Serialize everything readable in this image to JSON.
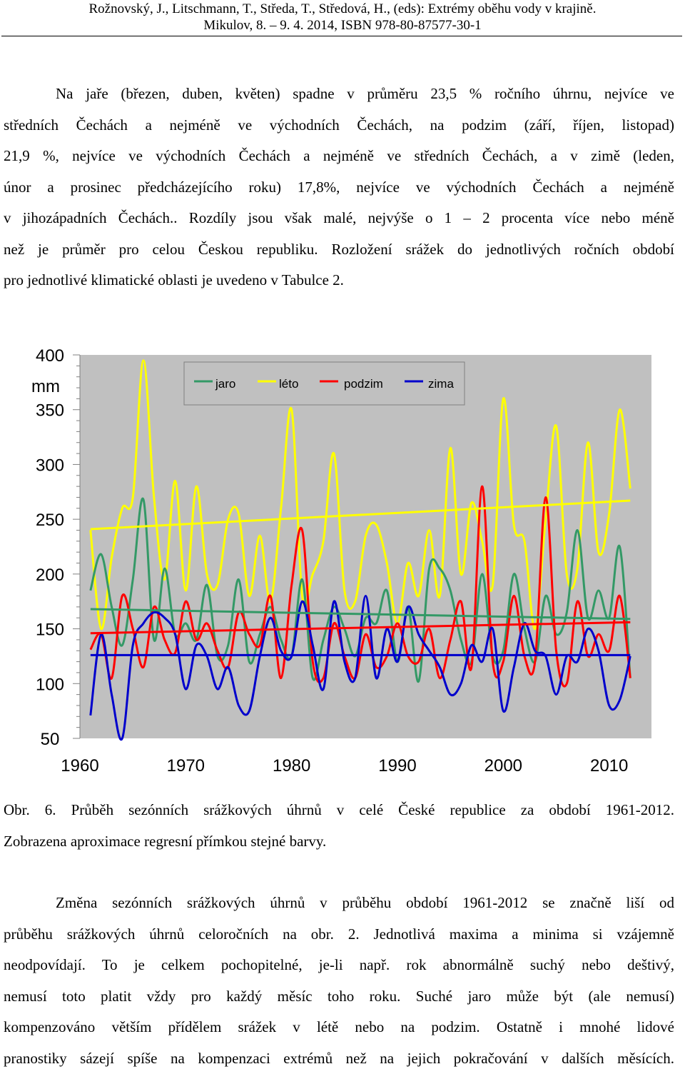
{
  "header": {
    "line1": "Rožnovský, J., Litschmann, T., Středa, T., Středová, H.,  (eds): Extrémy oběhu vody v krajině.",
    "line2": "Mikulov, 8. – 9. 4. 2014, ISBN 978-80-87577-30-1"
  },
  "para1": [
    "Na jaře (březen, duben, květen) spadne v průměru 23,5 % ročního úhrnu, nejvíce ve",
    "středních Čechách a nejméně ve východních Čechách, na podzim (září, říjen, listopad)",
    "21,9 %, nejvíce ve východních Čechách a nejméně ve středních Čechách, a v zimě (leden,",
    "únor a prosinec předcházejícího roku) 17,8%, nejvíce ve východních Čechách a nejméně",
    "v jihozápadních Čechách.. Rozdíly jsou však malé, nejvýše o 1 – 2 procenta více nebo méně",
    "než je průměr pro celou Českou republiku. Rozložení srážek do jednotlivých ročních období",
    "pro jednotlivé klimatické oblasti je uvedeno v Tabulce 2."
  ],
  "caption": [
    "Obr. 6. Průběh sezónních srážkových úhrnů v celé České republice za období 1961-2012.",
    "Zobrazena aproximace regresní přímkou stejné barvy."
  ],
  "para2": [
    "Změna sezónních srážkových úhrnů v průběhu období 1961-2012 se značně liší od",
    "průběhu srážkových úhrnů celoročních na obr. 2. Jednotlivá maxima a minima si vzájemně",
    "neodpovídají. To je celkem pochopitelné, je-li např. rok abnormálně suchý nebo deštivý,",
    "nemusí toto platit vždy pro každý měsíc toho roku. Suché jaro může být (ale nemusí)",
    "kompenzováno větším přídělem srážek v létě nebo na podzim. Ostatně i mnohé lidové",
    "pranostiky sázejí spíše na kompenzaci extrémů než na jejich pokračování v dalších měsících."
  ],
  "chart_data": {
    "type": "line",
    "ylabel": "mm",
    "ylim": [
      50,
      400
    ],
    "xlim": [
      1960,
      2014
    ],
    "y_ticks": [
      "50",
      "100",
      "150",
      "200",
      "250",
      "300",
      "350",
      "400"
    ],
    "x_ticks": [
      "1960",
      "1970",
      "1980",
      "1990",
      "2000",
      "2010"
    ],
    "x_tick_values": [
      1960,
      1970,
      1980,
      1990,
      2000,
      2010
    ],
    "y_tick_values": [
      50,
      100,
      150,
      200,
      250,
      300,
      350,
      400
    ],
    "grid": false,
    "legend_position": "top",
    "background": "#c0c0c0",
    "years": [
      1961,
      1962,
      1963,
      1964,
      1965,
      1966,
      1967,
      1968,
      1969,
      1970,
      1971,
      1972,
      1973,
      1974,
      1975,
      1976,
      1977,
      1978,
      1979,
      1980,
      1981,
      1982,
      1983,
      1984,
      1985,
      1986,
      1987,
      1988,
      1989,
      1990,
      1991,
      1992,
      1993,
      1994,
      1995,
      1996,
      1997,
      1998,
      1999,
      2000,
      2001,
      2002,
      2003,
      2004,
      2005,
      2006,
      2007,
      2008,
      2009,
      2010,
      2011,
      2012
    ],
    "series": [
      {
        "name": "jaro",
        "color": "#339966",
        "values": [
          185,
          218,
          170,
          135,
          195,
          268,
          140,
          205,
          145,
          155,
          140,
          190,
          125,
          135,
          195,
          120,
          145,
          170,
          140,
          125,
          195,
          105,
          140,
          170,
          150,
          125,
          160,
          155,
          185,
          120,
          170,
          102,
          205,
          205,
          185,
          140,
          120,
          200,
          125,
          130,
          200,
          150,
          120,
          180,
          145,
          165,
          240,
          160,
          185,
          160,
          225,
          105
        ],
        "trend": [
          168,
          159
        ]
      },
      {
        "name": "léto",
        "color": "#ffff00",
        "values": [
          240,
          150,
          215,
          260,
          270,
          395,
          270,
          195,
          285,
          185,
          280,
          200,
          190,
          250,
          255,
          180,
          235,
          175,
          260,
          350,
          180,
          200,
          230,
          310,
          185,
          175,
          235,
          245,
          210,
          155,
          210,
          180,
          240,
          180,
          315,
          200,
          265,
          230,
          190,
          360,
          245,
          230,
          150,
          250,
          335,
          200,
          205,
          320,
          220,
          255,
          350,
          278
        ],
        "trend": [
          241,
          267
        ]
      },
      {
        "name": "podzim",
        "color": "#ff0000",
        "values": [
          131,
          145,
          105,
          180,
          150,
          115,
          170,
          140,
          128,
          175,
          140,
          155,
          130,
          115,
          165,
          145,
          135,
          180,
          105,
          190,
          240,
          120,
          105,
          155,
          125,
          105,
          145,
          115,
          125,
          155,
          125,
          120,
          150,
          105,
          140,
          175,
          115,
          280,
          120,
          120,
          180,
          125,
          120,
          270,
          130,
          100,
          175,
          125,
          145,
          130,
          180,
          105
        ],
        "trend": [
          146,
          156
        ]
      },
      {
        "name": "zima",
        "color": "#0000cc",
        "values": [
          71,
          145,
          90,
          50,
          135,
          155,
          165,
          160,
          145,
          95,
          135,
          125,
          95,
          115,
          80,
          75,
          125,
          160,
          130,
          125,
          175,
          135,
          95,
          175,
          120,
          105,
          180,
          105,
          150,
          120,
          170,
          145,
          130,
          115,
          90,
          100,
          135,
          120,
          150,
          75,
          115,
          155,
          130,
          125,
          90,
          125,
          120,
          150,
          130,
          80,
          85,
          125
        ],
        "trend": [
          126,
          126
        ]
      }
    ]
  }
}
